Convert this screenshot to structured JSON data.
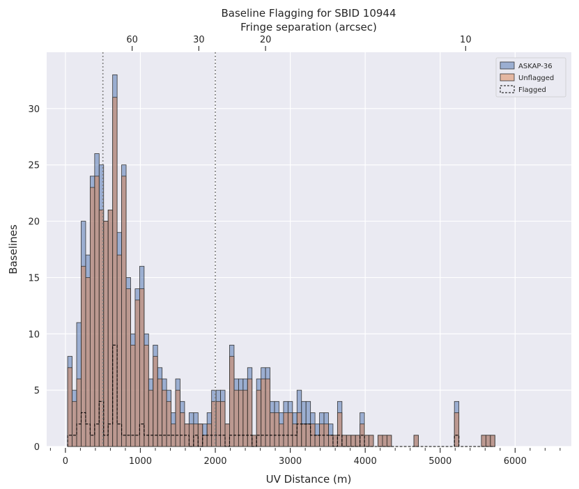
{
  "chart_data": {
    "type": "histogram",
    "title": "Baseline Flagging for SBID 10944",
    "xlabel": "UV Distance (m)",
    "ylabel": "Baselines",
    "top_axis_label": "Fringe separation (arcsec)",
    "xlim": [
      -250,
      6750
    ],
    "ylim": [
      0,
      35
    ],
    "x_ticks": [
      0,
      1000,
      2000,
      3000,
      4000,
      5000,
      6000
    ],
    "y_ticks": [
      0,
      5,
      10,
      15,
      20,
      25,
      30
    ],
    "top_ticks": [
      {
        "label": "60",
        "uv": 890
      },
      {
        "label": "30",
        "uv": 1780
      },
      {
        "label": "20",
        "uv": 2670
      },
      {
        "label": "10",
        "uv": 5340
      }
    ],
    "vlines": [
      500,
      2000
    ],
    "bin_start": 30,
    "bin_width": 60,
    "legend": {
      "location": "upper right",
      "entries": [
        "ASKAP-36",
        "Unflagged",
        "Flagged"
      ]
    },
    "series": [
      {
        "name": "ASKAP-36",
        "color": "#4c72b0",
        "style": "filled-step",
        "values": [
          8,
          5,
          11,
          20,
          17,
          24,
          26,
          25,
          20,
          21,
          33,
          19,
          25,
          15,
          10,
          14,
          16,
          10,
          6,
          9,
          7,
          6,
          5,
          3,
          6,
          4,
          2,
          3,
          3,
          2,
          2,
          3,
          5,
          5,
          5,
          2,
          9,
          6,
          6,
          6,
          7,
          1,
          6,
          7,
          7,
          4,
          4,
          3,
          4,
          4,
          3,
          5,
          4,
          4,
          3,
          2,
          3,
          3,
          2,
          1,
          4,
          1,
          1,
          1,
          1,
          3,
          1,
          1,
          0,
          1,
          1,
          1,
          0,
          0,
          0,
          0,
          0,
          1,
          0,
          0,
          0,
          0,
          0,
          0,
          0,
          0,
          4,
          0,
          0,
          0,
          0,
          0,
          1,
          1,
          1
        ]
      },
      {
        "name": "Unflagged",
        "color": "#dd8452",
        "style": "filled-step",
        "values": [
          7,
          4,
          6,
          16,
          15,
          23,
          24,
          21,
          20,
          21,
          31,
          17,
          24,
          14,
          9,
          13,
          14,
          9,
          5,
          8,
          6,
          5,
          4,
          2,
          5,
          3,
          2,
          2,
          2,
          2,
          1,
          2,
          4,
          4,
          4,
          2,
          8,
          5,
          5,
          5,
          6,
          1,
          5,
          6,
          6,
          3,
          3,
          2,
          3,
          3,
          2,
          3,
          2,
          2,
          2,
          1,
          2,
          2,
          1,
          1,
          3,
          1,
          1,
          1,
          1,
          2,
          1,
          1,
          0,
          1,
          1,
          1,
          0,
          0,
          0,
          0,
          0,
          1,
          0,
          0,
          0,
          0,
          0,
          0,
          0,
          0,
          3,
          0,
          0,
          0,
          0,
          0,
          1,
          1,
          1
        ]
      },
      {
        "name": "Flagged",
        "color": "#000000",
        "style": "dashed-step",
        "values": [
          1,
          1,
          2,
          3,
          2,
          1,
          2,
          4,
          1,
          2,
          9,
          2,
          1,
          1,
          1,
          1,
          2,
          1,
          1,
          1,
          1,
          1,
          1,
          1,
          1,
          1,
          1,
          0,
          1,
          0,
          1,
          1,
          1,
          1,
          1,
          0,
          1,
          1,
          1,
          1,
          1,
          0,
          1,
          1,
          1,
          1,
          1,
          1,
          1,
          1,
          1,
          2,
          2,
          2,
          1,
          1,
          1,
          1,
          1,
          0,
          1,
          0,
          0,
          0,
          0,
          1,
          0,
          0,
          0,
          0,
          0,
          0,
          0,
          0,
          0,
          0,
          0,
          0,
          0,
          0,
          0,
          0,
          0,
          0,
          0,
          0,
          1,
          0,
          0,
          0,
          0,
          0,
          0,
          0,
          0
        ]
      }
    ]
  }
}
